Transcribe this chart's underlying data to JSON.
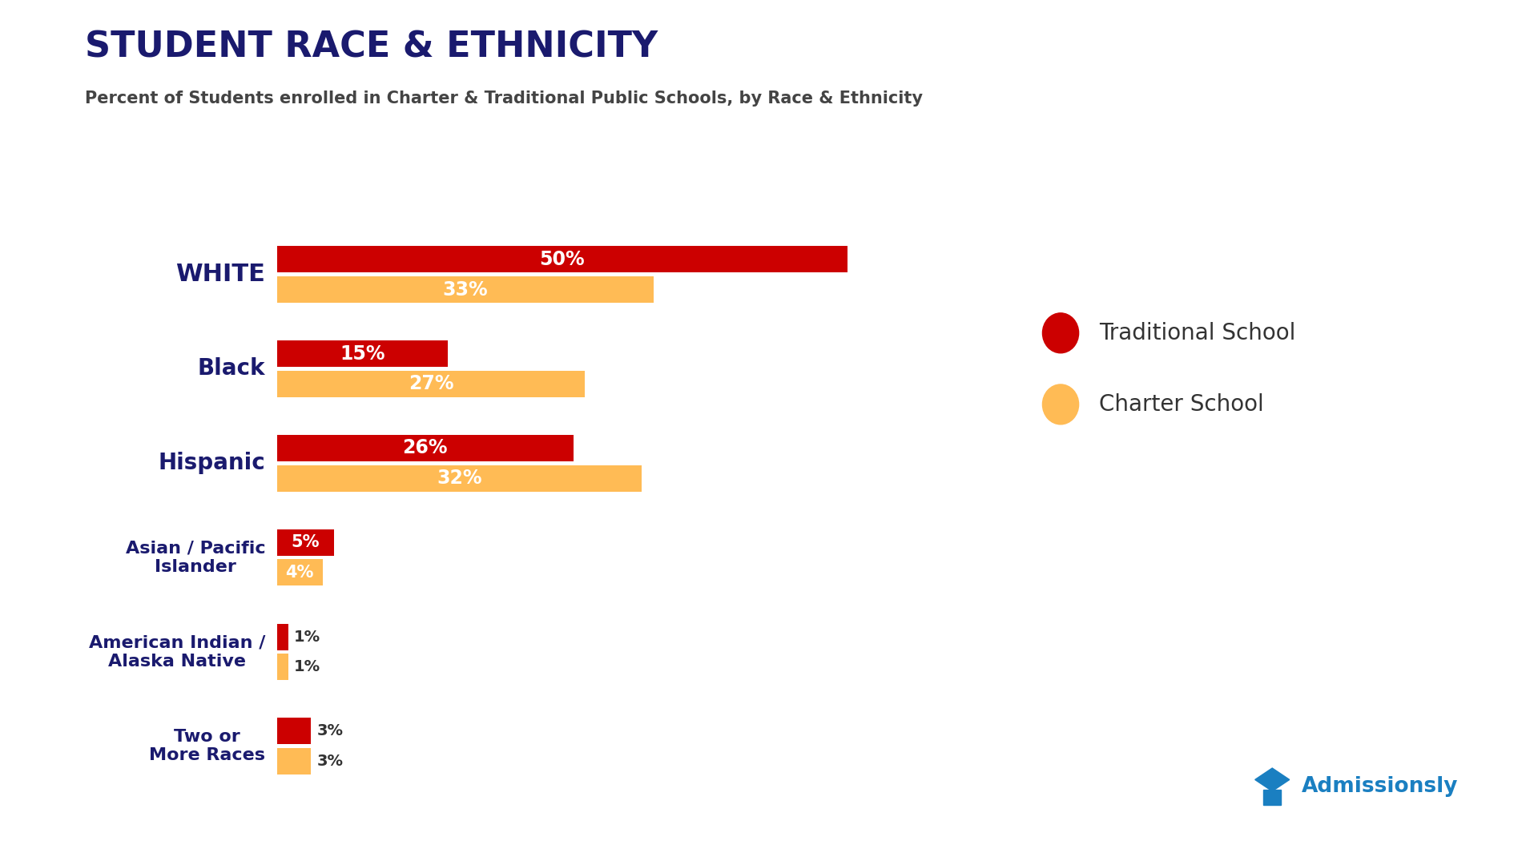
{
  "title": "STUDENT RACE & ETHNICITY",
  "subtitle": "Percent of Students enrolled in Charter & Traditional Public Schools, by Race & Ethnicity",
  "categories": [
    "WHITE",
    "Black",
    "Hispanic",
    "Asian / Pacific\nIslander",
    "American Indian /\nAlaska Native",
    "Two or\nMore Races"
  ],
  "traditional_values": [
    50,
    15,
    26,
    5,
    1,
    3
  ],
  "charter_values": [
    33,
    27,
    32,
    4,
    1,
    3
  ],
  "traditional_color": "#CC0000",
  "charter_color": "#FFBB55",
  "title_color": "#1a1a6e",
  "subtitle_color": "#444444",
  "label_color": "#1a1a6e",
  "background_color": "#ffffff",
  "legend_traditional": "Traditional School",
  "legend_charter": "Charter School",
  "admissionsly_color": "#1a7fc1",
  "figsize": [
    19.2,
    10.8
  ],
  "dpi": 100
}
